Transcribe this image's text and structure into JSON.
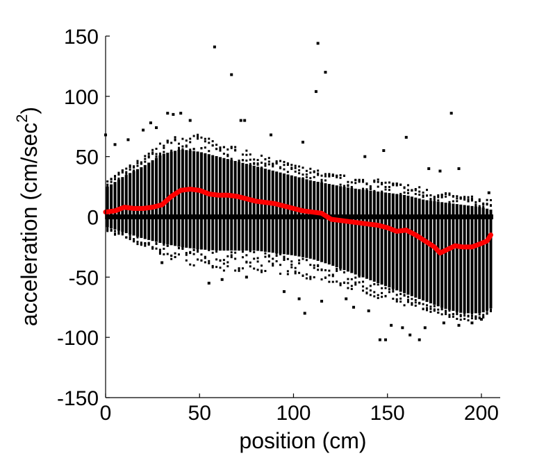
{
  "chart_data": {
    "type": "scatter",
    "title": "",
    "xlabel": "position (cm)",
    "ylabel_main": "acceleration (cm/sec",
    "ylabel_sup": "2",
    "ylabel_close": ")",
    "xlim": [
      0,
      210
    ],
    "ylim": [
      -150,
      150
    ],
    "xticks": [
      0,
      50,
      100,
      150,
      200
    ],
    "yticks": [
      150,
      100,
      50,
      0,
      -50,
      -100,
      -150
    ],
    "xtick_labels": [
      "0",
      "50",
      "100",
      "150",
      "200"
    ],
    "ytick_labels": [
      "150",
      "100",
      "50",
      "0",
      "-50",
      "-100",
      "-150"
    ],
    "grid": false,
    "legend": "none",
    "colors": {
      "points": "#000000",
      "mean_line": "#ff0000",
      "axes": "#000000"
    },
    "series": [
      {
        "kind": "scatter-envelope",
        "note_values": "per-position spread of acceleration samples; each column spans [low, high] with dense core [core_low, core_high]",
        "x_start": 0,
        "x_end": 205,
        "x_step": 2,
        "envelope": [
          {
            "x": 0,
            "low": -12,
            "high": 30,
            "core_low": -8,
            "core_high": 24
          },
          {
            "x": 10,
            "low": -18,
            "high": 40,
            "core_low": -13,
            "core_high": 34
          },
          {
            "x": 20,
            "low": -25,
            "high": 50,
            "core_low": -18,
            "core_high": 42
          },
          {
            "x": 30,
            "low": -32,
            "high": 62,
            "core_low": -22,
            "core_high": 52
          },
          {
            "x": 40,
            "low": -38,
            "high": 70,
            "core_low": -25,
            "core_high": 56
          },
          {
            "x": 50,
            "low": -42,
            "high": 68,
            "core_low": -27,
            "core_high": 54
          },
          {
            "x": 60,
            "low": -45,
            "high": 62,
            "core_low": -28,
            "core_high": 50
          },
          {
            "x": 70,
            "low": -45,
            "high": 58,
            "core_low": -28,
            "core_high": 46
          },
          {
            "x": 80,
            "low": -45,
            "high": 52,
            "core_low": -28,
            "core_high": 42
          },
          {
            "x": 90,
            "low": -48,
            "high": 48,
            "core_low": -30,
            "core_high": 38
          },
          {
            "x": 100,
            "low": -50,
            "high": 44,
            "core_low": -32,
            "core_high": 34
          },
          {
            "x": 110,
            "low": -52,
            "high": 40,
            "core_low": -35,
            "core_high": 30
          },
          {
            "x": 120,
            "low": -55,
            "high": 36,
            "core_low": -40,
            "core_high": 27
          },
          {
            "x": 130,
            "low": -60,
            "high": 34,
            "core_low": -46,
            "core_high": 24
          },
          {
            "x": 140,
            "low": -65,
            "high": 32,
            "core_low": -52,
            "core_high": 22
          },
          {
            "x": 150,
            "low": -70,
            "high": 30,
            "core_low": -58,
            "core_high": 20
          },
          {
            "x": 160,
            "low": -74,
            "high": 28,
            "core_low": -64,
            "core_high": 18
          },
          {
            "x": 170,
            "low": -78,
            "high": 24,
            "core_low": -70,
            "core_high": 14
          },
          {
            "x": 180,
            "low": -82,
            "high": 20,
            "core_low": -76,
            "core_high": 12
          },
          {
            "x": 190,
            "low": -86,
            "high": 18,
            "core_low": -80,
            "core_high": 10
          },
          {
            "x": 200,
            "low": -86,
            "high": 16,
            "core_low": -80,
            "core_high": 8
          },
          {
            "x": 205,
            "low": -82,
            "high": 14,
            "core_low": -76,
            "core_high": 6
          }
        ],
        "zero_band": {
          "low": -2,
          "high": 2
        }
      },
      {
        "kind": "outliers",
        "points": [
          [
            0,
            68
          ],
          [
            5,
            60
          ],
          [
            12,
            64
          ],
          [
            20,
            72
          ],
          [
            24,
            78
          ],
          [
            27,
            74
          ],
          [
            33,
            86
          ],
          [
            36,
            85
          ],
          [
            40,
            86
          ],
          [
            45,
            80
          ],
          [
            58,
            141
          ],
          [
            67,
            118
          ],
          [
            72,
            80
          ],
          [
            74,
            80
          ],
          [
            88,
            68
          ],
          [
            105,
            62
          ],
          [
            112,
            104
          ],
          [
            113,
            144
          ],
          [
            117,
            120
          ],
          [
            138,
            50
          ],
          [
            148,
            55
          ],
          [
            160,
            66
          ],
          [
            172,
            40
          ],
          [
            178,
            38
          ],
          [
            184,
            86
          ],
          [
            188,
            40
          ],
          [
            204,
            20
          ],
          [
            30,
            -38
          ],
          [
            55,
            -55
          ],
          [
            62,
            -52
          ],
          [
            75,
            -50
          ],
          [
            95,
            -62
          ],
          [
            103,
            -68
          ],
          [
            106,
            -80
          ],
          [
            115,
            -70
          ],
          [
            128,
            -68
          ],
          [
            132,
            -75
          ],
          [
            140,
            -78
          ],
          [
            146,
            -102
          ],
          [
            149,
            -102
          ],
          [
            152,
            -90
          ],
          [
            158,
            -92
          ],
          [
            162,
            -98
          ],
          [
            167,
            -102
          ],
          [
            170,
            -92
          ],
          [
            180,
            -88
          ],
          [
            188,
            -90
          ],
          [
            195,
            -88
          ],
          [
            200,
            -85
          ]
        ]
      },
      {
        "kind": "mean-line",
        "points": [
          [
            0,
            4
          ],
          [
            5,
            5
          ],
          [
            10,
            8
          ],
          [
            15,
            7
          ],
          [
            20,
            7
          ],
          [
            25,
            8
          ],
          [
            30,
            10
          ],
          [
            35,
            17
          ],
          [
            40,
            22
          ],
          [
            45,
            23
          ],
          [
            50,
            22
          ],
          [
            55,
            19
          ],
          [
            60,
            18
          ],
          [
            65,
            18
          ],
          [
            70,
            17
          ],
          [
            75,
            15
          ],
          [
            80,
            13
          ],
          [
            85,
            12
          ],
          [
            90,
            11
          ],
          [
            95,
            9
          ],
          [
            100,
            7
          ],
          [
            105,
            5
          ],
          [
            110,
            4
          ],
          [
            115,
            3
          ],
          [
            120,
            -2
          ],
          [
            125,
            -3
          ],
          [
            130,
            -4
          ],
          [
            135,
            -5
          ],
          [
            140,
            -6
          ],
          [
            145,
            -7
          ],
          [
            150,
            -9
          ],
          [
            155,
            -12
          ],
          [
            160,
            -11
          ],
          [
            165,
            -15
          ],
          [
            170,
            -20
          ],
          [
            175,
            -25
          ],
          [
            178,
            -30
          ],
          [
            182,
            -27
          ],
          [
            186,
            -24
          ],
          [
            190,
            -25
          ],
          [
            195,
            -25
          ],
          [
            200,
            -22
          ],
          [
            203,
            -20
          ],
          [
            205,
            -15
          ]
        ]
      }
    ]
  }
}
